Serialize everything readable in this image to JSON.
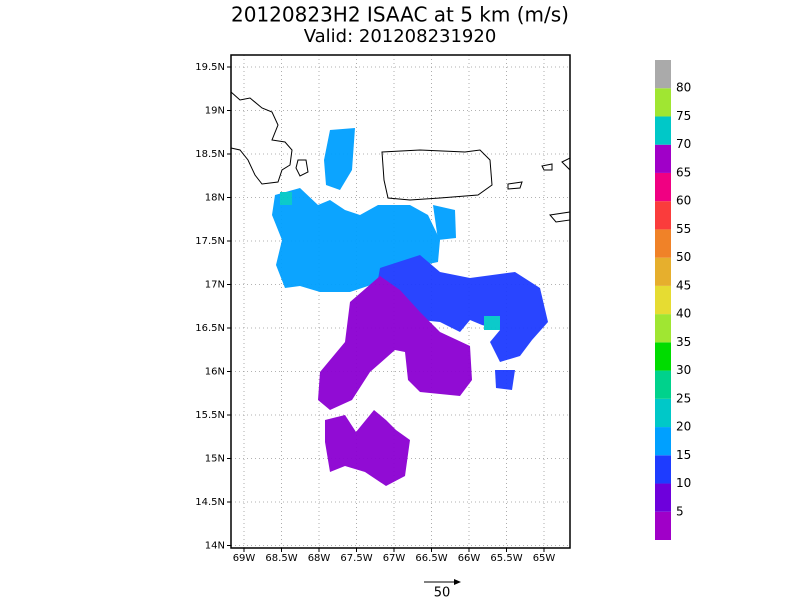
{
  "title": "20120823H2 ISAAC at 5 km (m/s)",
  "subtitle": "Valid: 201208231920",
  "lat_ticks": [
    "19.5N",
    "19N",
    "18.5N",
    "18N",
    "17.5N",
    "17N",
    "16.5N",
    "16N",
    "15.5N",
    "15N",
    "14.5N",
    "14N"
  ],
  "lon_ticks": [
    "69W",
    "68.5W",
    "68W",
    "67.5W",
    "67W",
    "66.5W",
    "66W",
    "65.5W",
    "65W"
  ],
  "colorbar": {
    "labels": [
      5,
      10,
      15,
      20,
      25,
      30,
      35,
      40,
      45,
      50,
      55,
      60,
      65,
      70,
      75,
      80
    ],
    "colors": [
      "#a000c8",
      "#6e00dc",
      "#1e3cff",
      "#00a0ff",
      "#00c8c8",
      "#00d28c",
      "#00dc00",
      "#a0e632",
      "#e6dc32",
      "#e6af2d",
      "#f08228",
      "#fa3c3c",
      "#f00082",
      "#a000c8",
      "#00c8c8",
      "#a0e632",
      "#aaaaaa"
    ]
  },
  "reference_vector": {
    "label": "50"
  }
}
